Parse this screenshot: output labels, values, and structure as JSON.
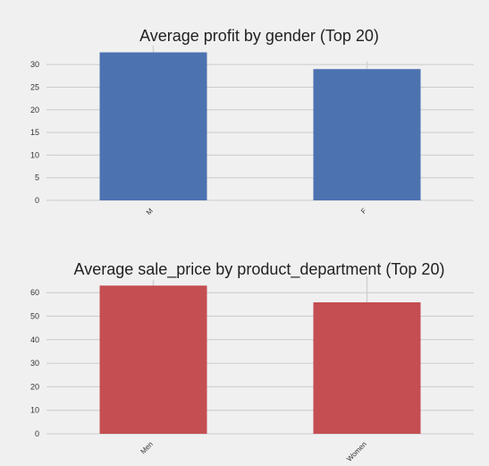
{
  "chart_data": [
    {
      "type": "bar",
      "title": "Average profit by gender (Top 20)",
      "categories": [
        "M",
        "F"
      ],
      "values": [
        32.7,
        29.0
      ],
      "error_high": [
        34.2,
        30.7
      ],
      "color": "#4c72b0",
      "ylim": [
        0,
        33
      ],
      "yticks": [
        0,
        5,
        10,
        15,
        20,
        25,
        30
      ],
      "xlabel": "",
      "ylabel": "",
      "grid": true,
      "legend": "none"
    },
    {
      "type": "bar",
      "title": "Average sale_price by product_department (Top 20)",
      "categories": [
        "Men",
        "Women"
      ],
      "values": [
        63.0,
        55.9
      ],
      "error_high": [
        65.5,
        67.0
      ],
      "color": "#c44e52",
      "ylim": [
        0,
        63.5
      ],
      "yticks": [
        0,
        10,
        20,
        30,
        40,
        50,
        60
      ],
      "xlabel": "",
      "ylabel": "",
      "grid": true,
      "legend": "none"
    }
  ]
}
